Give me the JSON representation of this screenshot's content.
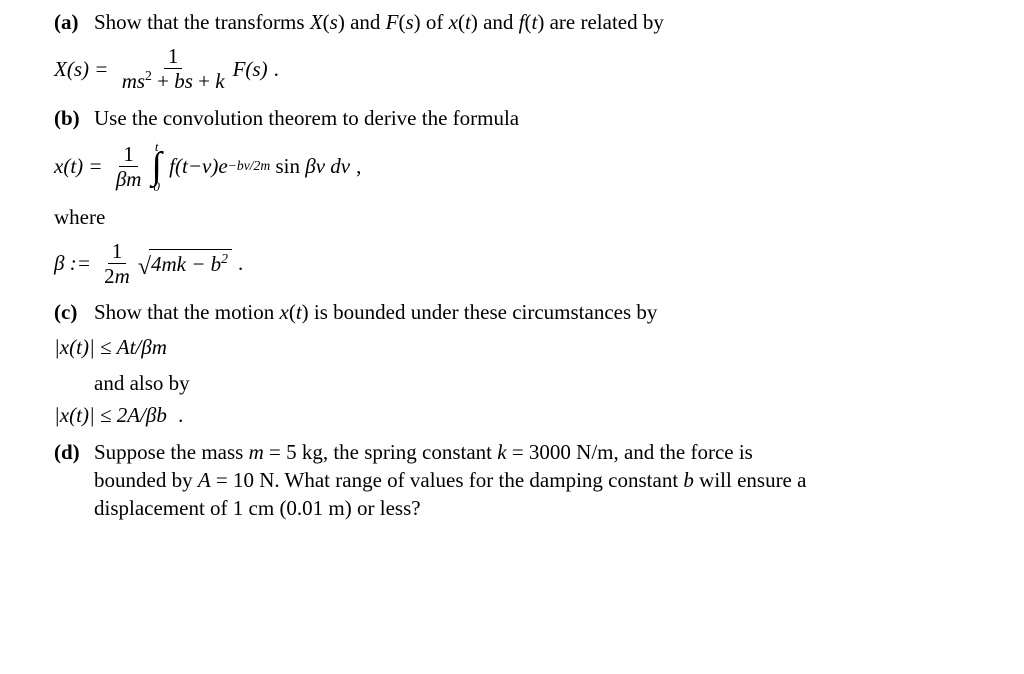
{
  "a": {
    "label": "(a)",
    "text": "Show that the transforms X(s) and F(s) of x(t) and f(t) are related by",
    "eq_lhs": "X(s) = ",
    "frac_num": "1",
    "frac_den_html": "ms<sup class='sup'>2</sup> + bs + k",
    "eq_rhs": "F(s)",
    "punct": " ."
  },
  "b": {
    "label": "(b)",
    "text": "Use the convolution theorem to derive the formula",
    "eq_lhs": "x(t) = ",
    "frac_num": "1",
    "frac_den": "βm",
    "int_upper": "t",
    "int_lower": "0",
    "integrand_html": "f(t − v)e<sup class='sup'>−bv/2m</sup> <span class='roman'>sin</span> βv dv",
    "punct": " ,",
    "where": "where",
    "beta_lhs": "β := ",
    "beta_frac_num": "1",
    "beta_frac_den": "2m",
    "beta_rad_html": "4mk − b<sup class='sup'>2</sup>",
    "beta_punct": " ."
  },
  "c": {
    "label": "(c)",
    "text": "Show that the motion x(t) is bounded under these circumstances by",
    "ineq1": "|x(t)| ≤ At/βm",
    "also": "and also by",
    "ineq2": "|x(t)| ≤ 2A/βb ",
    "punct": " ."
  },
  "d": {
    "label": "(d)",
    "line1_html": "Suppose the mass <span class='it'>m</span> = 5 kg, the spring constant <span class='it'>k</span> = 3000 N/m, and the force is",
    "line2_html": "bounded by <span class='it'>A</span> = 10 N. What range of values for the damping constant <span class='it'>b</span> will ensure a",
    "line3": "displacement of 1 cm (0.01 m) or less?"
  }
}
